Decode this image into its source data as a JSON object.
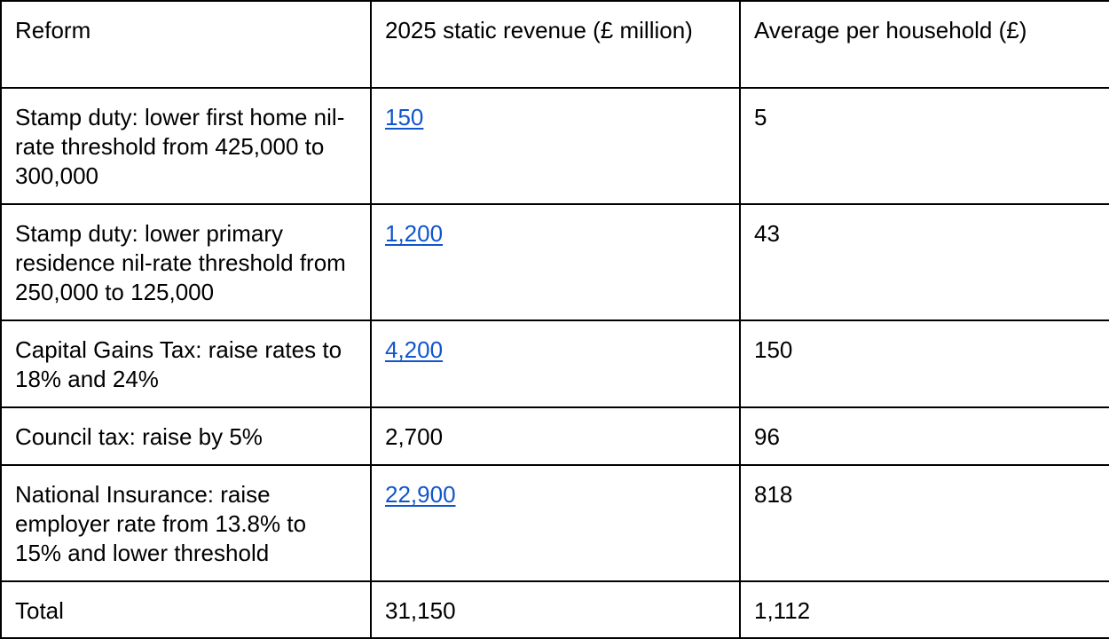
{
  "table": {
    "headers": [
      "Reform",
      "2025 static revenue (£ million)",
      "Average per household (£)"
    ],
    "rows": [
      {
        "reform": "Stamp duty: lower first home nil-rate threshold from 425,000 to 300,000",
        "revenue": "150",
        "revenue_is_link": true,
        "household": "5"
      },
      {
        "reform": "Stamp duty: lower primary residence nil-rate threshold from 250,000 to 125,000",
        "revenue": "1,200",
        "revenue_is_link": true,
        "household": "43"
      },
      {
        "reform": "Capital Gains Tax: raise rates to 18% and 24%",
        "revenue": "4,200",
        "revenue_is_link": true,
        "household": "150"
      },
      {
        "reform": "Council tax: raise by 5%",
        "revenue": "2,700",
        "revenue_is_link": false,
        "household": "96"
      },
      {
        "reform": "National Insurance: raise employer rate from 13.8% to 15% and lower threshold",
        "revenue": "22,900",
        "revenue_is_link": true,
        "household": "818"
      },
      {
        "reform": "Total",
        "revenue": "31,150",
        "revenue_is_link": false,
        "household": "1,112"
      }
    ]
  },
  "colors": {
    "link": "#1155cc",
    "border": "#000000",
    "text": "#000000",
    "background": "#ffffff"
  }
}
